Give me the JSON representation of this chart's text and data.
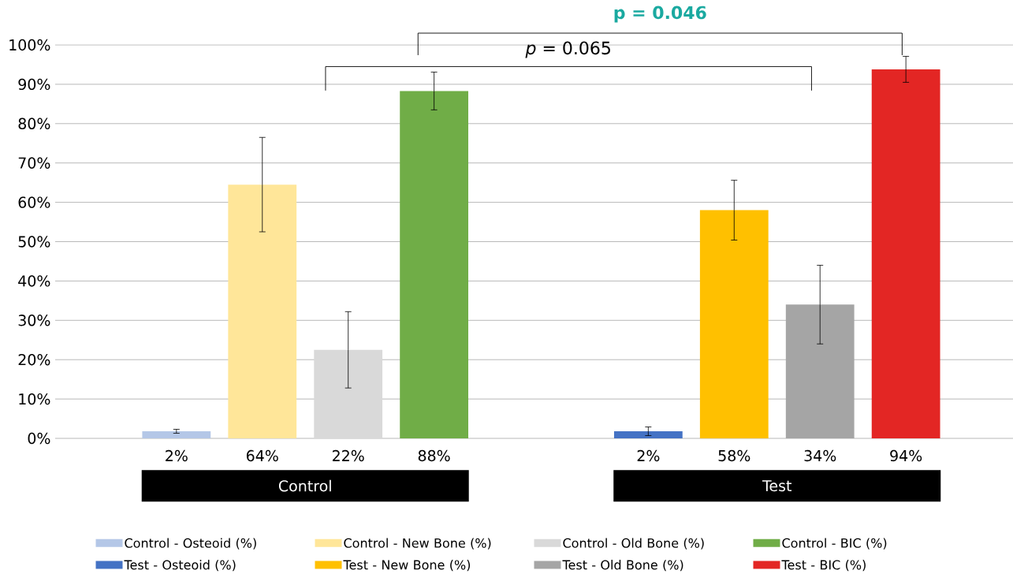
{
  "chart_data": {
    "type": "bar",
    "categories": [
      "Control",
      "Test"
    ],
    "series": [
      {
        "name": "Control - Osteoid (%)",
        "color": "#b4c7e7",
        "values": [
          1.8,
          null
        ],
        "errors": [
          0.5,
          null
        ],
        "value_labels": [
          "2%",
          null
        ]
      },
      {
        "name": "Control - New Bone (%)",
        "color": "#ffe699",
        "values": [
          64.5,
          null
        ],
        "errors": [
          12,
          null
        ],
        "value_labels": [
          "64%",
          null
        ]
      },
      {
        "name": "Control - Old Bone (%)",
        "color": "#d9d9d9",
        "values": [
          22.5,
          null
        ],
        "errors": [
          9.7,
          null
        ],
        "value_labels": [
          "22%",
          null
        ]
      },
      {
        "name": "Control - BIC (%)",
        "color": "#70ad47",
        "values": [
          88.3,
          null
        ],
        "errors": [
          4.8,
          null
        ],
        "value_labels": [
          "88%",
          null
        ]
      },
      {
        "name": "Test - Osteoid (%)",
        "color": "#4472c4",
        "values": [
          null,
          1.8
        ],
        "errors": [
          null,
          1.1
        ],
        "value_labels": [
          null,
          "2%"
        ]
      },
      {
        "name": "Test - New Bone (%)",
        "color": "#ffc000",
        "values": [
          null,
          58
        ],
        "errors": [
          null,
          7.6
        ],
        "value_labels": [
          null,
          "58%"
        ]
      },
      {
        "name": "Test - Old Bone (%)",
        "color": "#a5a5a5",
        "values": [
          null,
          34
        ],
        "errors": [
          null,
          10
        ],
        "value_labels": [
          null,
          "34%"
        ]
      },
      {
        "name": "Test - BIC (%)",
        "color": "#e32624",
        "values": [
          null,
          93.8
        ],
        "errors": [
          null,
          3.3
        ],
        "value_labels": [
          null,
          "94%"
        ]
      }
    ],
    "ylim": [
      0,
      100
    ],
    "yticks": [
      {
        "value": 0,
        "label": "0%"
      },
      {
        "value": 10,
        "label": "10%"
      },
      {
        "value": 20,
        "label": "20%"
      },
      {
        "value": 30,
        "label": "30%"
      },
      {
        "value": 40,
        "label": "40%"
      },
      {
        "value": 50,
        "label": "50%"
      },
      {
        "value": 60,
        "label": "60%"
      },
      {
        "value": 70,
        "label": "70%"
      },
      {
        "value": 80,
        "label": "80%"
      },
      {
        "value": 90,
        "label": "90%"
      },
      {
        "value": 100,
        "label": "100%"
      }
    ],
    "grid": "y",
    "legend": "bottom",
    "annotations": [
      "*p* = 0.065",
      "**p = 0.046**"
    ]
  }
}
